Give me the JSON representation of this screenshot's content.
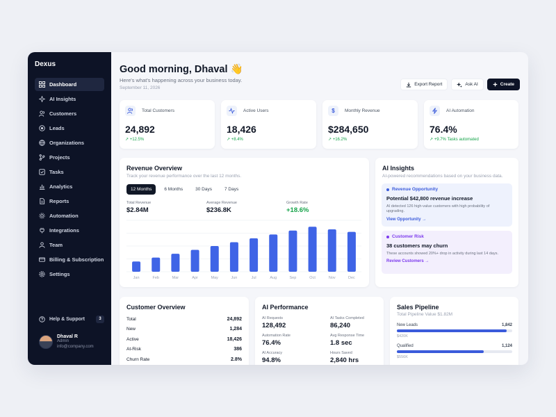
{
  "sidebar": {
    "brand": "Dexus",
    "items": [
      {
        "label": "Dashboard",
        "icon": "grid-icon"
      },
      {
        "label": "AI Insights",
        "icon": "sparkle-icon"
      },
      {
        "label": "Customers",
        "icon": "users-icon"
      },
      {
        "label": "Leads",
        "icon": "target-icon"
      },
      {
        "label": "Organizations",
        "icon": "globe-icon"
      },
      {
        "label": "Projects",
        "icon": "branch-icon"
      },
      {
        "label": "Tasks",
        "icon": "checkbox-icon"
      },
      {
        "label": "Analytics",
        "icon": "bar-chart-icon"
      },
      {
        "label": "Reports",
        "icon": "document-icon"
      },
      {
        "label": "Automation",
        "icon": "gear-icon"
      },
      {
        "label": "Integrations",
        "icon": "plug-icon"
      },
      {
        "label": "Team",
        "icon": "team-icon"
      },
      {
        "label": "Billing & Subscription",
        "icon": "card-icon"
      },
      {
        "label": "Settings",
        "icon": "settings-icon"
      }
    ],
    "help": {
      "label": "Help & Support",
      "badge": "3"
    },
    "user": {
      "name": "Dhaval R",
      "role": "Admin",
      "email": "info@company.com"
    }
  },
  "header": {
    "greeting": "Good morning, Dhaval 👋",
    "subtitle": "Here's what's happening across your business today.",
    "date": "September 11, 2026",
    "actions": {
      "export": "Export Report",
      "ask_ai": "Ask AI",
      "create": "Create"
    }
  },
  "kpis": [
    {
      "label": "Total Customers",
      "value": "24,892",
      "trend": "+12.5%",
      "icon": "users-icon"
    },
    {
      "label": "Active Users",
      "value": "18,426",
      "trend": "+8.4%",
      "icon": "activity-icon"
    },
    {
      "label": "Monthly Revenue",
      "value": "$284,650",
      "trend": "+16.2%",
      "icon": "dollar-icon"
    },
    {
      "label": "AI Automation",
      "value": "76.4%",
      "trend": "+9.7% Tasks automated",
      "icon": "bolt-icon"
    }
  ],
  "revenue": {
    "title": "Revenue Overview",
    "subtitle": "Track your revenue performance over the last 12 months.",
    "tabs": [
      "12 Months",
      "6 Months",
      "30 Days",
      "7 Days"
    ],
    "metrics": [
      {
        "label": "Total Revenue",
        "value": "$2.84M"
      },
      {
        "label": "Average Revenue",
        "value": "$236.8K"
      },
      {
        "label": "Growth Rate",
        "value": "+18.6%"
      }
    ],
    "accent": "#3f64e6"
  },
  "chart_data": {
    "type": "bar",
    "categories": [
      "Jan",
      "Feb",
      "Mar",
      "Apr",
      "May",
      "Jun",
      "Jul",
      "Aug",
      "Sep",
      "Oct",
      "Nov",
      "Dec"
    ],
    "values": [
      16,
      22,
      28,
      34,
      40,
      46,
      52,
      58,
      64,
      70,
      66,
      62
    ],
    "ylim": [
      0,
      80
    ],
    "grid": true,
    "title": "",
    "xlabel": "",
    "ylabel": ""
  },
  "ai_insights": {
    "title": "AI Insights",
    "subtitle": "AI-powered recommendations based on your business data.",
    "cards": [
      {
        "tag": "Revenue Opportunity",
        "title": "Potential $42,800 revenue increase",
        "desc": "AI detected 126 high-value customers with high probability of upgrading.",
        "link": "View Opportunity →",
        "color": "#3b5bdb",
        "bg": "#eef2fd"
      },
      {
        "tag": "Customer Risk",
        "title": "38 customers may churn",
        "desc": "These accounts showed 20%+ drop in activity during last 14 days.",
        "link": "Review Customers →",
        "color": "#7c3aed",
        "bg": "#f3effd"
      }
    ]
  },
  "customer_overview": {
    "title": "Customer Overview",
    "rows": [
      {
        "label": "Total",
        "value": "24,892"
      },
      {
        "label": "New",
        "value": "1,284"
      },
      {
        "label": "Active",
        "value": "18,426"
      },
      {
        "label": "At-Risk",
        "value": "386"
      },
      {
        "label": "Churn Rate",
        "value": "2.8%"
      }
    ]
  },
  "ai_performance": {
    "title": "AI Performance",
    "items": [
      {
        "label": "AI Requests",
        "value": "128,492"
      },
      {
        "label": "AI Tasks Completed",
        "value": "86,240"
      },
      {
        "label": "Automation Rate",
        "value": "76.4%"
      },
      {
        "label": "Avg Response Time",
        "value": "1.8 sec"
      },
      {
        "label": "AI Accuracy",
        "value": "94.8%"
      },
      {
        "label": "Hours Saved",
        "value": "2,840 hrs"
      }
    ]
  },
  "sales_pipeline": {
    "title": "Sales Pipeline",
    "subtitle": "Total Pipeline Value $1.82M",
    "stages": [
      {
        "label": "New Leads",
        "count": "1,842",
        "amount": "$420K",
        "fill": 0.95
      },
      {
        "label": "Qualified",
        "count": "1,124",
        "amount": "$556K",
        "fill": 0.75
      }
    ]
  }
}
